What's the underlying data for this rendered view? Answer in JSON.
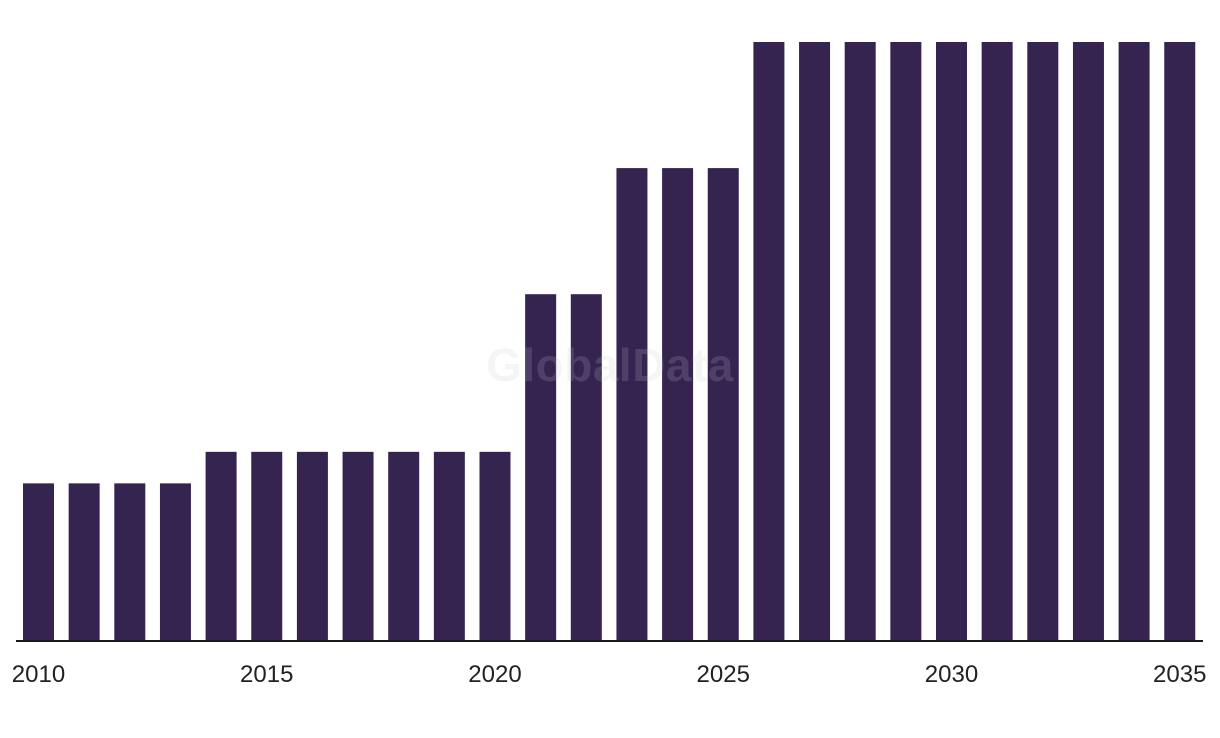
{
  "watermark": "GlobalData",
  "colors": {
    "bar": "#352350",
    "axis": "#1a1a1a",
    "tick_text": "#222222"
  },
  "chart_data": {
    "type": "bar",
    "categories": [
      "2010",
      "2011",
      "2012",
      "2013",
      "2014",
      "2015",
      "2016",
      "2017",
      "2018",
      "2019",
      "2020",
      "2021",
      "2022",
      "2023",
      "2024",
      "2025",
      "2026",
      "2027",
      "2028",
      "2029",
      "2030",
      "2031",
      "2032",
      "2033",
      "2034",
      "2035"
    ],
    "values": [
      50,
      50,
      50,
      50,
      60,
      60,
      60,
      60,
      60,
      60,
      60,
      110,
      110,
      150,
      150,
      150,
      190,
      190,
      190,
      190,
      190,
      190,
      190,
      190,
      190,
      190
    ],
    "tick_labels": [
      "2010",
      "2015",
      "2020",
      "2025",
      "2030",
      "2035"
    ],
    "title": "",
    "xlabel": "",
    "ylabel": "",
    "ylim": [
      0,
      190
    ],
    "grid": false,
    "legend": "none"
  }
}
